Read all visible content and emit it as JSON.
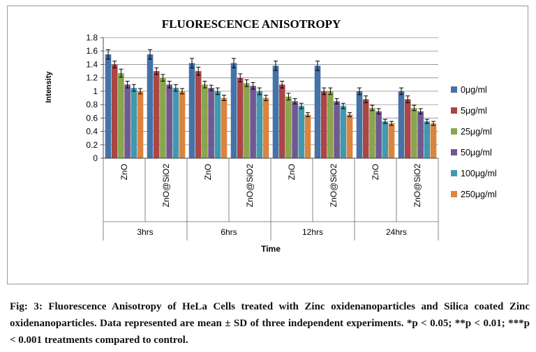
{
  "chart_data": {
    "type": "bar",
    "title": "FLUORESCENCE  ANISOTROPY",
    "xlabel": "Time",
    "ylabel": "Intensity",
    "ylim": [
      0,
      1.8
    ],
    "yticks": [
      "0",
      "0.2",
      "0.4",
      "0.6",
      "0.8",
      "1",
      "1.2",
      "1.4",
      "1.6",
      "1.8"
    ],
    "grid": true,
    "legend_position": "right",
    "groups": [
      {
        "label": "3hrs",
        "categories": [
          "ZnO",
          "ZnO@SiO2"
        ]
      },
      {
        "label": "6hrs",
        "categories": [
          "ZnO",
          "ZnO@SiO2"
        ]
      },
      {
        "label": "12hrs",
        "categories": [
          "ZnO",
          "ZnO@SiO2"
        ]
      },
      {
        "label": "24hrs",
        "categories": [
          "ZnO",
          "ZnO@SiO2"
        ]
      }
    ],
    "series": [
      {
        "name": "0μg/ml",
        "color": "#4572a7",
        "values": [
          1.55,
          1.55,
          1.42,
          1.42,
          1.38,
          1.38,
          1.0,
          1.0
        ],
        "errors": [
          0.07,
          0.07,
          0.07,
          0.07,
          0.07,
          0.07,
          0.05,
          0.05
        ]
      },
      {
        "name": "5μg/ml",
        "color": "#aa4643",
        "values": [
          1.4,
          1.3,
          1.3,
          1.2,
          1.1,
          1.0,
          0.88,
          0.88
        ],
        "errors": [
          0.05,
          0.05,
          0.06,
          0.06,
          0.05,
          0.05,
          0.05,
          0.05
        ]
      },
      {
        "name": "25μg/ml",
        "color": "#89a54e",
        "values": [
          1.27,
          1.2,
          1.1,
          1.12,
          0.92,
          1.0,
          0.75,
          0.75
        ],
        "errors": [
          0.06,
          0.05,
          0.05,
          0.05,
          0.05,
          0.05,
          0.04,
          0.04
        ]
      },
      {
        "name": "50μg/ml",
        "color": "#71588f",
        "values": [
          1.1,
          1.1,
          1.05,
          1.08,
          0.85,
          0.85,
          0.7,
          0.7
        ],
        "errors": [
          0.05,
          0.05,
          0.04,
          0.05,
          0.04,
          0.04,
          0.04,
          0.04
        ]
      },
      {
        "name": "100μg/ml",
        "color": "#4198af",
        "values": [
          1.05,
          1.05,
          1.0,
          1.0,
          0.78,
          0.78,
          0.55,
          0.55
        ],
        "errors": [
          0.05,
          0.05,
          0.05,
          0.05,
          0.04,
          0.04,
          0.03,
          0.03
        ]
      },
      {
        "name": "250μg/ml",
        "color": "#db843d",
        "values": [
          1.0,
          1.0,
          0.9,
          0.9,
          0.65,
          0.65,
          0.52,
          0.52
        ],
        "errors": [
          0.04,
          0.04,
          0.04,
          0.04,
          0.03,
          0.03,
          0.03,
          0.03
        ]
      }
    ]
  },
  "caption": "Fig: 3: Fluorescence Anisotropy of HeLa Cells treated with Zinc oxidenanoparticles and Silica coated Zinc oxidenanoparticles. Data represented are mean ± SD of three independent experiments. *p < 0.05; **p < 0.01; ***p < 0.001 treatments compared to control."
}
